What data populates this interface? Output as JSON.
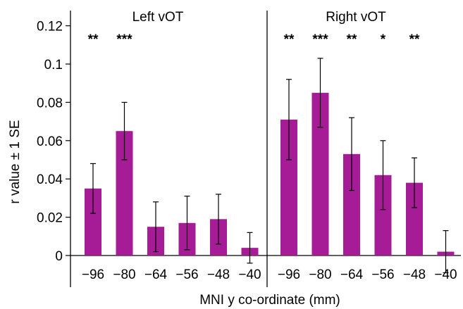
{
  "chart_data": {
    "type": "bar",
    "xlabel": "MNI y co-ordinate (mm)",
    "ylabel": "r value ± 1 SE",
    "ylim": [
      -0.005,
      0.13
    ],
    "yticks": [
      "0",
      "0.02",
      "0.04",
      "0.06",
      "0.08",
      "0.1",
      "0.12"
    ],
    "ytick_values": [
      0,
      0.02,
      0.04,
      0.06,
      0.08,
      0.1,
      0.12
    ],
    "bar_color": "#a61c96",
    "panels": [
      {
        "title": "Left vOT",
        "categories": [
          "−96",
          "−80",
          "−64",
          "−56",
          "−48",
          "−40"
        ],
        "values": [
          0.035,
          0.065,
          0.015,
          0.017,
          0.019,
          0.004
        ],
        "errors": [
          0.013,
          0.015,
          0.013,
          0.014,
          0.013,
          0.008
        ],
        "significance": [
          "**",
          "***",
          "",
          "",
          "",
          ""
        ]
      },
      {
        "title": "Right vOT",
        "categories": [
          "−96",
          "−80",
          "−64",
          "−56",
          "−48",
          "−40"
        ],
        "values": [
          0.071,
          0.085,
          0.053,
          0.042,
          0.038,
          0.002
        ],
        "errors": [
          0.021,
          0.018,
          0.019,
          0.018,
          0.013,
          0.011
        ],
        "significance": [
          "**",
          "***",
          "**",
          "*",
          "**",
          ""
        ]
      }
    ]
  }
}
